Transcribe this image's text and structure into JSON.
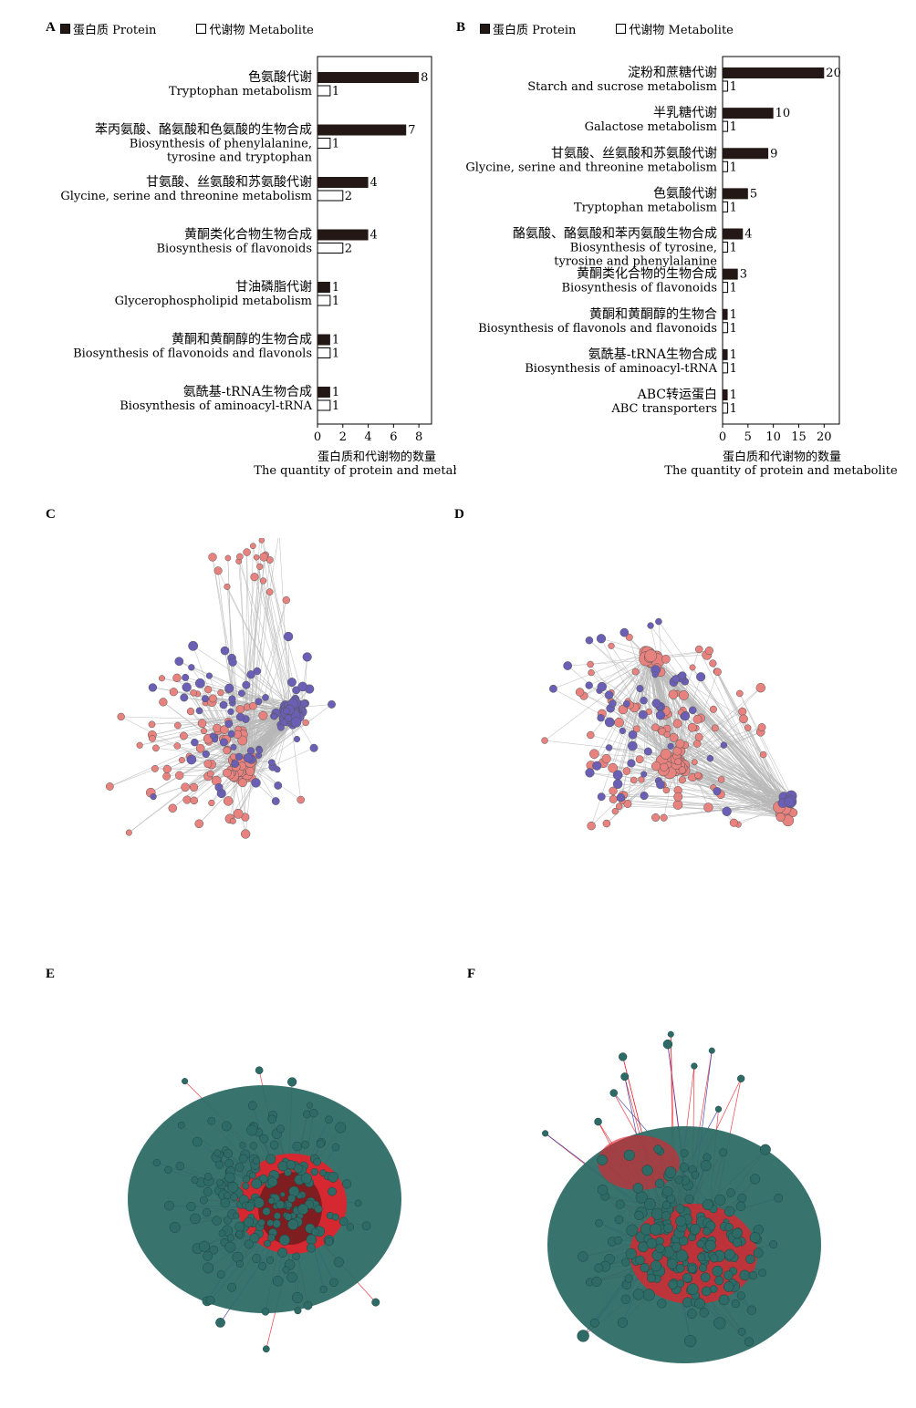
{
  "panels": {
    "a": "A",
    "b": "B",
    "c": "C",
    "d": "D",
    "e": "E",
    "f": "F"
  },
  "legend": {
    "protein": "蛋白质 Protein",
    "metabolite": "代谢物 Metabolite"
  },
  "colors": {
    "protein_bar": "#231815",
    "metabolite_bar": "#ffffff",
    "net_pink": "#e8827f",
    "net_purple": "#6a5fb5",
    "net_teal": "#2e6b66",
    "edge_red": "#e8202a",
    "edge_blue": "#2c2aa0",
    "edge_gray": "#b8b8b8"
  },
  "chart_data": [
    {
      "type": "bar",
      "orientation": "horizontal",
      "categories_cn": [
        "色氨酸代谢",
        "苯丙氨酸、酪氨酸和色氨酸的生物合成",
        "甘氨酸、丝氨酸和苏氨酸代谢",
        "黄酮类化合物生物合成",
        "甘油磷脂代谢",
        "黄酮和黄酮醇的生物合成",
        "氨酰基-tRNA生物合成"
      ],
      "categories_en": [
        [
          "Tryptophan metabolism"
        ],
        [
          "Biosynthesis of phenylalanine,",
          "tyrosine and tryptophan"
        ],
        [
          "Glycine, serine and threonine metabolism"
        ],
        [
          "Biosynthesis of flavonoids"
        ],
        [
          "Glycerophospholipid metabolism"
        ],
        [
          "Biosynthesis of flavonoids and flavonols"
        ],
        [
          "Biosynthesis of aminoacyl-tRNA"
        ]
      ],
      "series": [
        {
          "name": "蛋白质 Protein",
          "values": [
            8,
            7,
            4,
            4,
            1,
            1,
            1
          ]
        },
        {
          "name": "代谢物 Metabolite",
          "values": [
            1,
            1,
            2,
            2,
            1,
            1,
            1
          ]
        }
      ],
      "xlim": [
        0,
        9
      ],
      "xticks": [
        0,
        2,
        4,
        6,
        8
      ],
      "xlabel_cn": "蛋白质和代谢物的数量",
      "xlabel_en": "The quantity of protein and metabolite"
    },
    {
      "type": "bar",
      "orientation": "horizontal",
      "categories_cn": [
        "淀粉和蔗糖代谢",
        "半乳糖代谢",
        "甘氨酸、丝氨酸和苏氨酸代谢",
        "色氨酸代谢",
        "酪氨酸、酪氨酸和苯丙氨酸生物合成",
        "黄酮类化合物的生物合成",
        "黄酮和黄酮醇的生物合",
        "氨酰基-tRNA生物合成",
        "ABC转运蛋白"
      ],
      "categories_en": [
        [
          "Starch and sucrose metabolism"
        ],
        [
          "Galactose metabolism"
        ],
        [
          "Glycine, serine and threonine metabolism"
        ],
        [
          "Tryptophan metabolism"
        ],
        [
          "Biosynthesis of tyrosine,",
          "tyrosine and phenylalanine"
        ],
        [
          "Biosynthesis of flavonoids"
        ],
        [
          "Biosynthesis of flavonols and flavonoids"
        ],
        [
          "Biosynthesis of aminoacyl-tRNA"
        ],
        [
          "ABC transporters"
        ]
      ],
      "series": [
        {
          "name": "蛋白质 Protein",
          "values": [
            20,
            10,
            9,
            5,
            4,
            3,
            1,
            1,
            1
          ]
        },
        {
          "name": "代谢物 Metabolite",
          "values": [
            1,
            1,
            1,
            1,
            1,
            1,
            1,
            1,
            1
          ]
        }
      ],
      "xlim": [
        0,
        23
      ],
      "xticks": [
        0,
        5,
        10,
        15,
        20
      ],
      "xlabel_cn": "蛋白质和代谢物的数量",
      "xlabel_en": "The quantity of protein and metabolite"
    }
  ]
}
